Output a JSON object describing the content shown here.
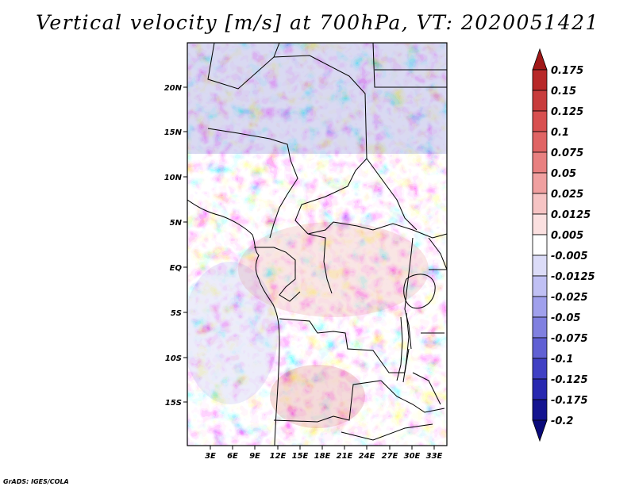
{
  "title": "Vertical velocity [m/s] at 700hPa, VT: 2020051421",
  "credit": "GrADS: IGES/COLA",
  "map": {
    "lat_labels": [
      "20N",
      "15N",
      "10N",
      "5N",
      "EQ",
      "5S",
      "10S",
      "15S"
    ],
    "lon_labels": [
      "3E",
      "6E",
      "9E",
      "12E",
      "15E",
      "18E",
      "21E",
      "24E",
      "27E",
      "30E",
      "33E"
    ]
  },
  "colorbar": {
    "labels": [
      "0.175",
      "0.15",
      "0.125",
      "0.1",
      "0.075",
      "0.05",
      "0.025",
      "0.0125",
      "0.005",
      "-0.005",
      "-0.0125",
      "-0.025",
      "-0.05",
      "-0.075",
      "-0.1",
      "-0.125",
      "-0.175",
      "-0.2"
    ],
    "colors": [
      "#a01818",
      "#b82828",
      "#c83c3c",
      "#d85050",
      "#e06464",
      "#e88080",
      "#f0a0a0",
      "#f6c4c4",
      "#fbe0e0",
      "#ffffff",
      "#dcdcf8",
      "#c0c0f4",
      "#a0a0ec",
      "#8080e0",
      "#6060d4",
      "#4040c4",
      "#2828b0",
      "#141490",
      "#0a0a7a"
    ]
  }
}
